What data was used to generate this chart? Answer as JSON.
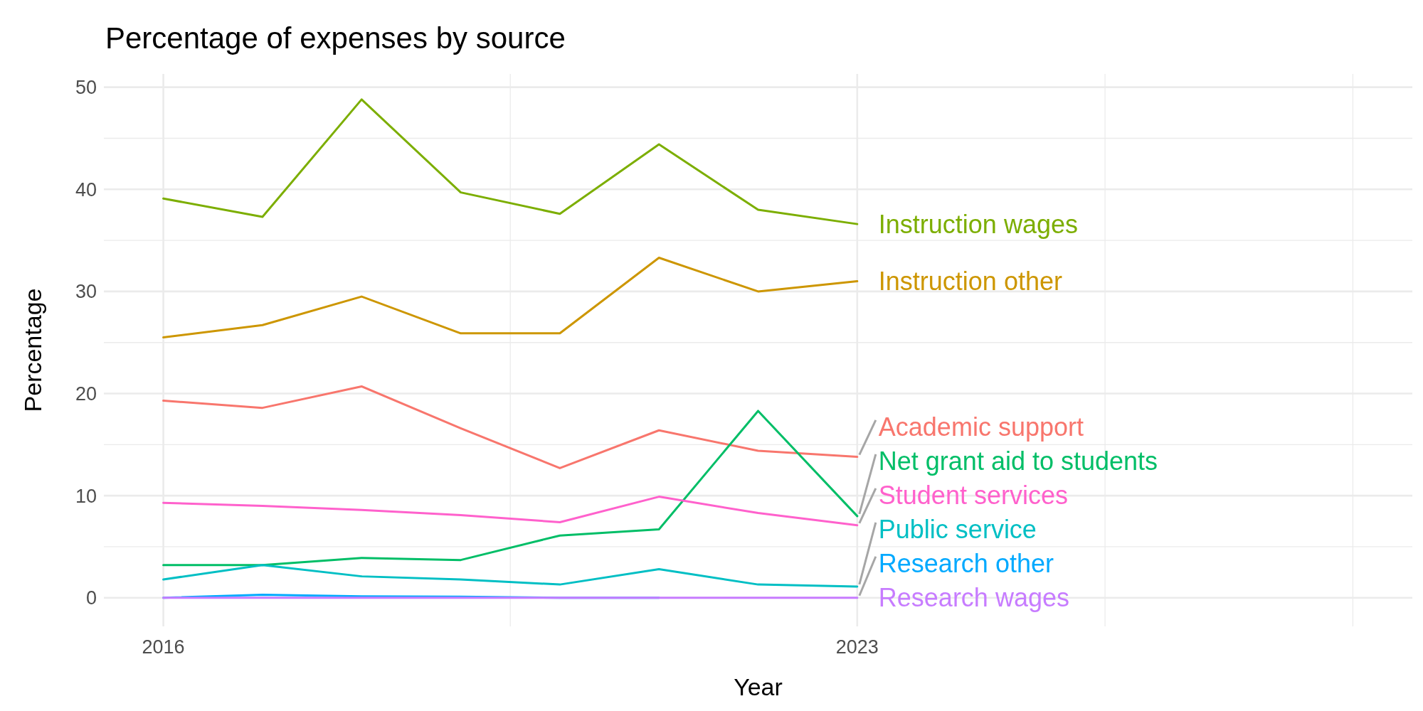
{
  "chart_data": {
    "type": "line",
    "title": "Percentage of expenses by source",
    "xlabel": "Year",
    "ylabel": "Percentage",
    "x": [
      2016,
      2017,
      2018,
      2019,
      2020,
      2021,
      2022,
      2023
    ],
    "series": [
      {
        "name": "Instruction wages",
        "color": "#7cae00",
        "values": [
          39.1,
          37.3,
          48.8,
          39.7,
          37.6,
          44.4,
          38.0,
          36.6
        ]
      },
      {
        "name": "Instruction other",
        "color": "#cd9600",
        "values": [
          25.5,
          26.7,
          29.5,
          25.9,
          25.9,
          33.3,
          30.0,
          31.0
        ]
      },
      {
        "name": "Academic support",
        "color": "#f8766d",
        "values": [
          19.3,
          18.6,
          20.7,
          16.6,
          12.7,
          16.4,
          14.4,
          13.8
        ]
      },
      {
        "name": "Net grant aid to students",
        "color": "#00be67",
        "values": [
          3.2,
          3.2,
          3.9,
          3.7,
          6.1,
          6.7,
          18.3,
          8.0
        ]
      },
      {
        "name": "Student services",
        "color": "#ff61cc",
        "values": [
          9.3,
          9.0,
          8.6,
          8.1,
          7.4,
          9.9,
          8.3,
          7.1
        ]
      },
      {
        "name": "Public service",
        "color": "#00bfc4",
        "values": [
          1.8,
          3.2,
          2.1,
          1.8,
          1.3,
          2.8,
          1.3,
          1.1
        ]
      },
      {
        "name": "Research other",
        "color": "#00a9ff",
        "values": [
          0,
          0.3,
          0.15,
          0.1,
          0,
          0,
          null,
          null
        ]
      },
      {
        "name": "Research wages",
        "color": "#c77cff",
        "values": [
          0,
          0,
          0,
          0,
          0,
          0,
          0,
          0
        ]
      }
    ],
    "xlim": [
      2015.4,
      2028.6
    ],
    "xticks": [
      2016,
      {
        "value": 2019.5,
        "label": null
      },
      2023,
      {
        "value": 2025.5,
        "label": null
      },
      {
        "value": 2028,
        "label": null
      }
    ],
    "ylim": [
      -2.8,
      51.3
    ],
    "yticks": [
      0,
      {
        "value": 5,
        "label": null
      },
      10,
      {
        "value": 15,
        "label": null
      },
      20,
      {
        "value": 25,
        "label": null
      },
      30,
      {
        "value": 35,
        "label": null
      },
      40,
      {
        "value": 45,
        "label": null
      },
      50
    ],
    "grid": true,
    "marker": "none",
    "line_style": "solid"
  }
}
